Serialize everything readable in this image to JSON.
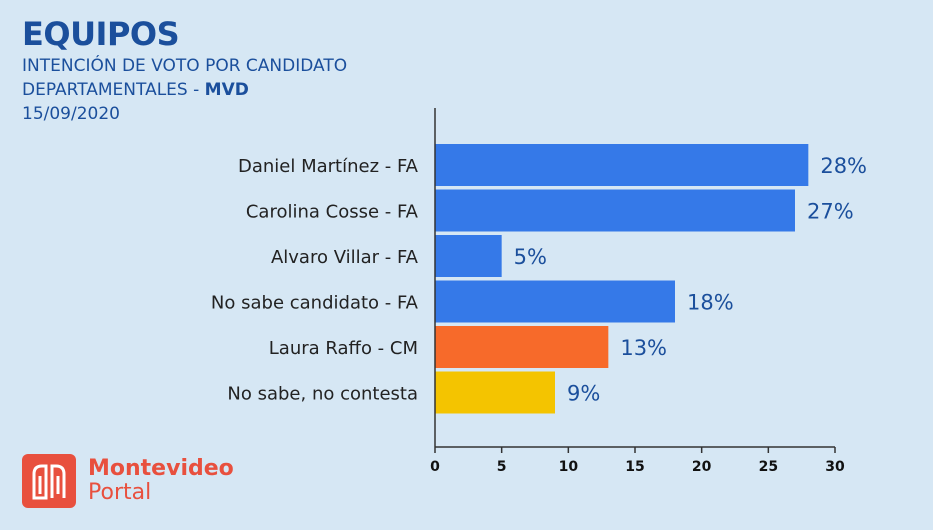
{
  "header": {
    "title": "EQUIPOS",
    "subtitle_line1": "INTENCIÓN DE VOTO POR CANDIDATO",
    "subtitle_line2_prefix": "DEPARTAMENTALES - ",
    "subtitle_line2_strong": "MVD",
    "date": "15/09/2020"
  },
  "logo": {
    "line1": "Montevideo",
    "line2": "Portal",
    "icon": "montevideo-portal-logo-icon",
    "color": "#e8503e"
  },
  "colors": {
    "FA": "#3579e8",
    "CM": "#f76a2a",
    "NS": "#f4c400",
    "axis": "#333333",
    "value_label": "#1b4f9c"
  },
  "chart_data": {
    "type": "bar",
    "orientation": "horizontal",
    "categories": [
      "Daniel Martínez - FA",
      "Carolina Cosse - FA",
      "Alvaro Villar - FA",
      "No sabe candidato - FA",
      "Laura Raffo - CM",
      "No sabe, no contesta"
    ],
    "values": [
      28,
      27,
      5,
      18,
      13,
      9
    ],
    "value_labels": [
      "28%",
      "27%",
      "5%",
      "18%",
      "13%",
      "9%"
    ],
    "bar_colors": [
      "#3579e8",
      "#3579e8",
      "#3579e8",
      "#3579e8",
      "#f76a2a",
      "#f4c400"
    ],
    "xlim": [
      0,
      30
    ],
    "xticks": [
      0,
      5,
      10,
      15,
      20,
      25,
      30
    ],
    "grid": false,
    "legend": "none"
  }
}
